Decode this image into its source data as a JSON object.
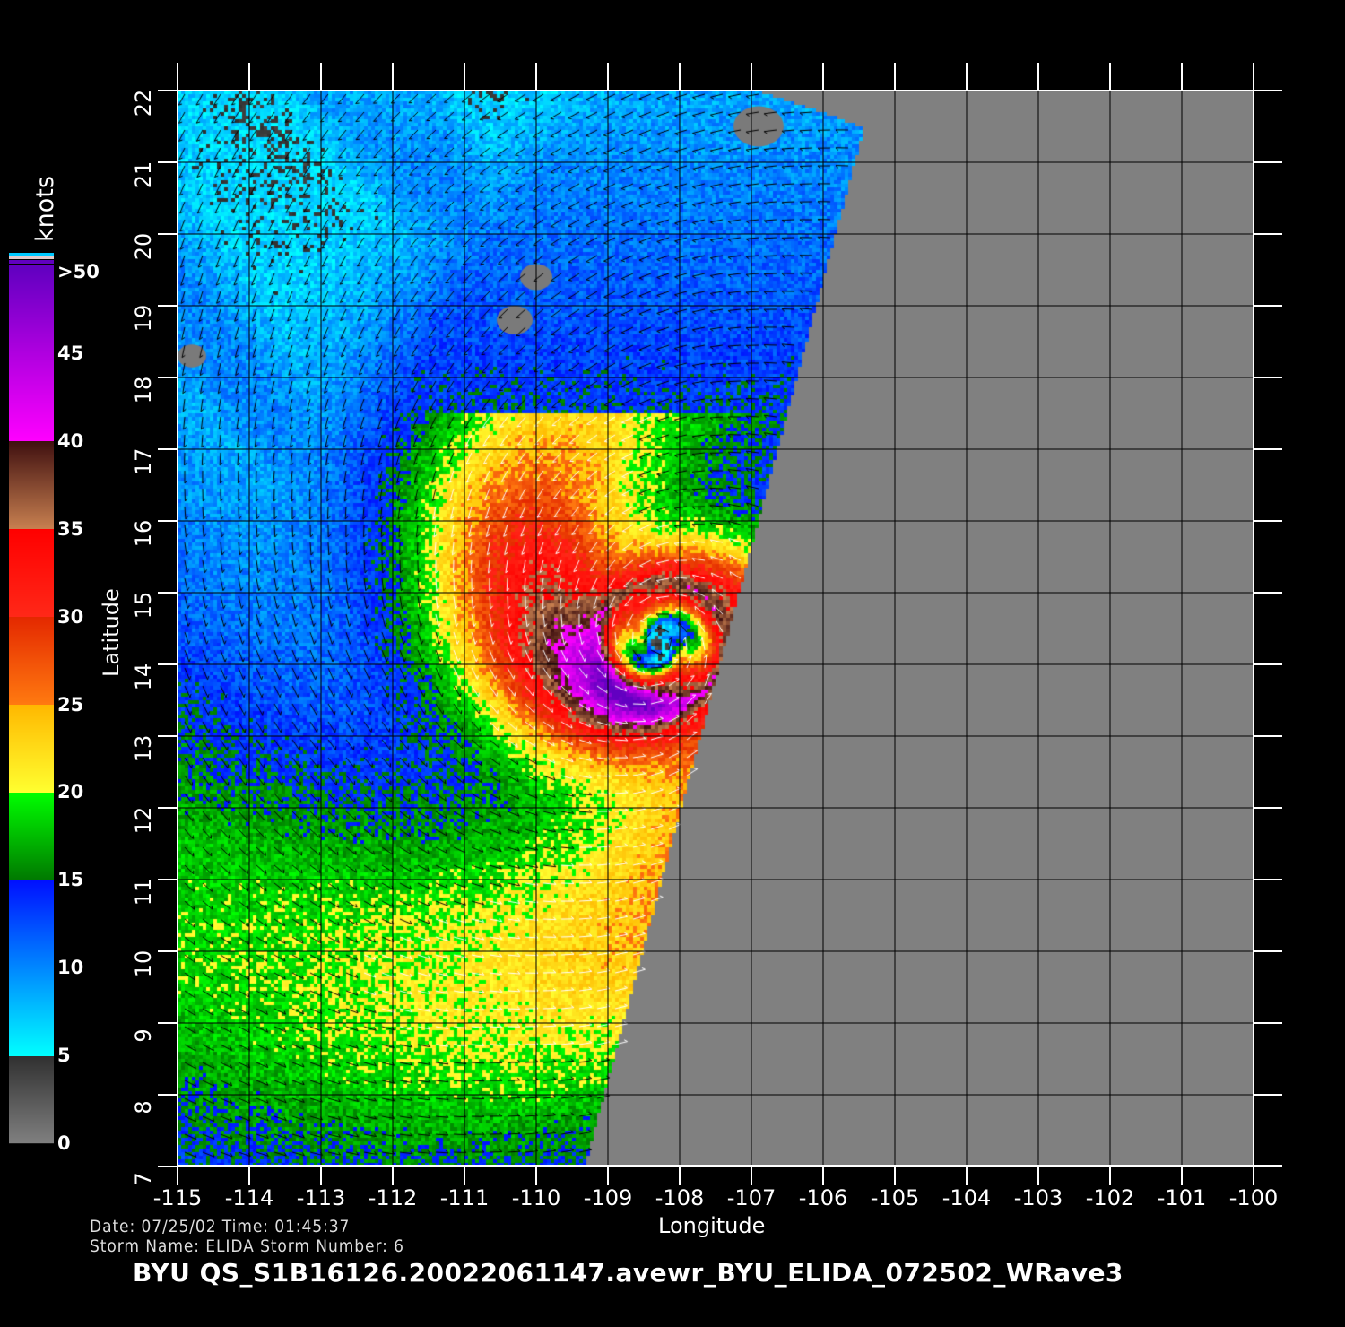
{
  "plot": {
    "x_axis_label": "Longitude",
    "y_axis_label": "Latitude",
    "lon_ticks": [
      "-115",
      "-114",
      "-113",
      "-112",
      "-111",
      "-110",
      "-109",
      "-108",
      "-107",
      "-106",
      "-105",
      "-104",
      "-103",
      "-102",
      "-101",
      "-100"
    ],
    "lat_ticks": [
      "7",
      "8",
      "9",
      "10",
      "11",
      "12",
      "13",
      "14",
      "15",
      "16",
      "17",
      "18",
      "19",
      "20",
      "21",
      "22"
    ],
    "lon_range": [
      -115,
      -100
    ],
    "lat_range": [
      7,
      22
    ],
    "storm_center_approx": {
      "lon": -108.3,
      "lat": 14.3
    },
    "land_nodata_color": "#808080"
  },
  "colorbar": {
    "unit_label": "knots",
    "tick_labels": [
      "0",
      "5",
      "10",
      "15",
      "20",
      "25",
      "30",
      "35",
      "40",
      "45",
      ">50"
    ],
    "stops": [
      {
        "value": 0,
        "color": "#808080"
      },
      {
        "value": 5,
        "color": "#303030"
      },
      {
        "value": 5,
        "color": "#00ffff"
      },
      {
        "value": 15,
        "color": "#0010ff"
      },
      {
        "value": 15,
        "color": "#007800"
      },
      {
        "value": 20,
        "color": "#00ff00"
      },
      {
        "value": 20,
        "color": "#ffff30"
      },
      {
        "value": 25,
        "color": "#ffb800"
      },
      {
        "value": 25,
        "color": "#ff7a10"
      },
      {
        "value": 30,
        "color": "#e42800"
      },
      {
        "value": 30,
        "color": "#ff2818"
      },
      {
        "value": 35,
        "color": "#ff0000"
      },
      {
        "value": 35,
        "color": "#c88050"
      },
      {
        "value": 40,
        "color": "#401010"
      },
      {
        "value": 40,
        "color": "#ff00ff"
      },
      {
        "value": 50,
        "color": "#6000c0"
      }
    ]
  },
  "info": {
    "date_time": "Date: 07/25/02   Time: 01:45:37",
    "storm": "Storm  Name: ELIDA   Storm  Number: 6",
    "file_title": "BYU  QS_S1B16126.20022061147.avewr_BYU_ELIDA_072502_WRave3"
  }
}
